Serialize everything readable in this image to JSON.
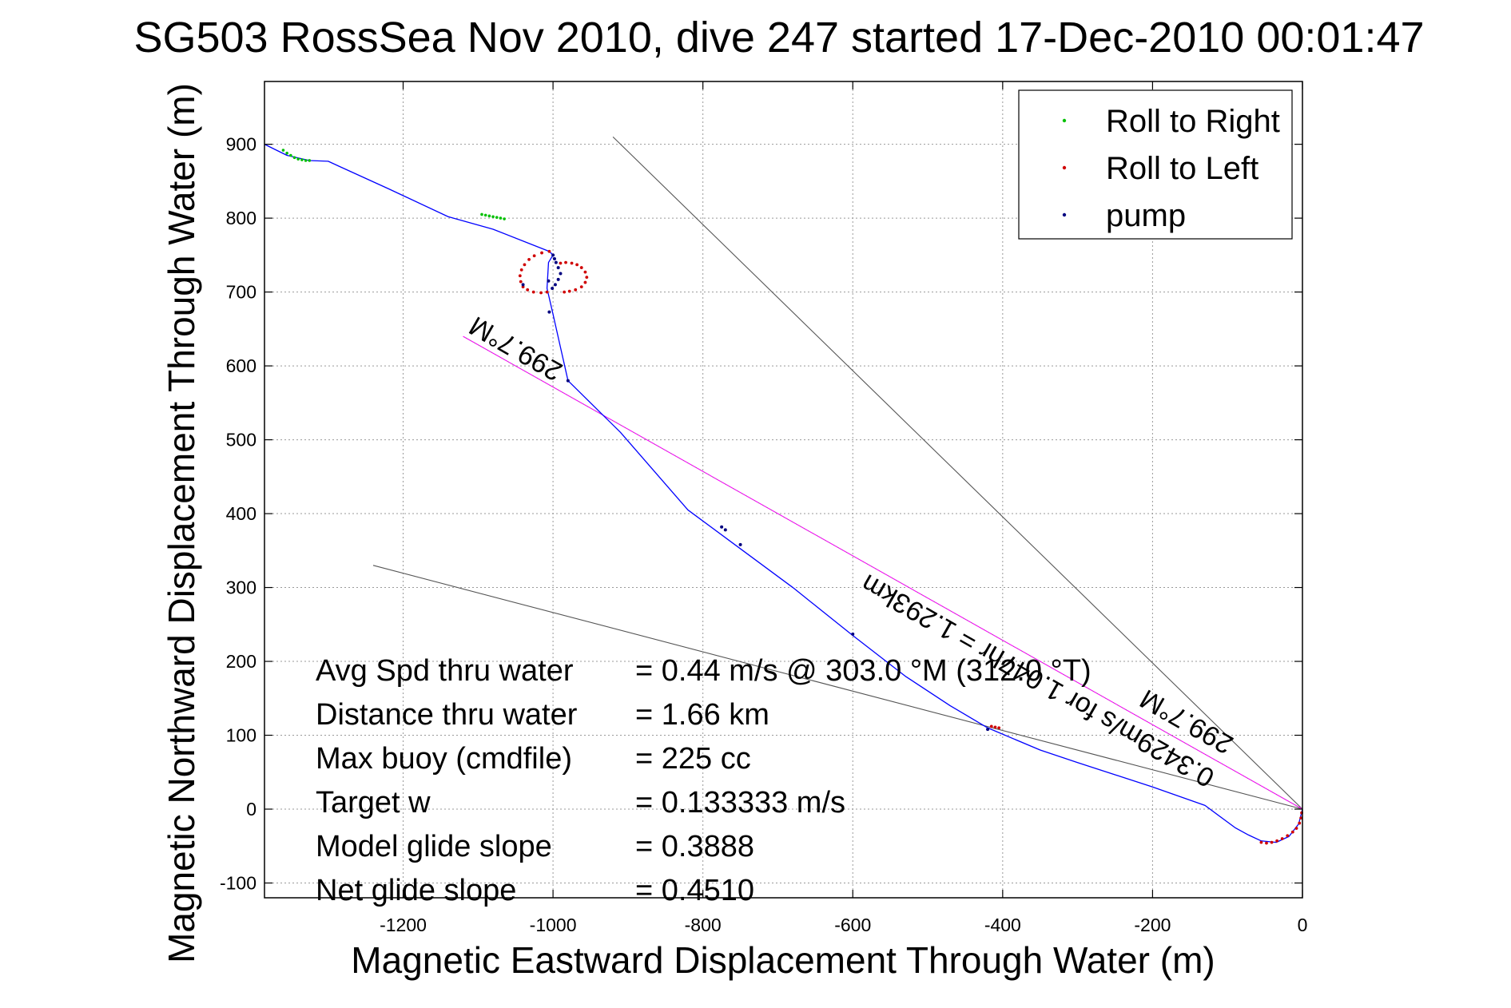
{
  "chart_data": {
    "type": "scatter",
    "title": "SG503 RossSea Nov 2010, dive 247 started 17-Dec-2010 00:01:47",
    "xlabel": "Magnetic Eastward Displacement Through Water (m)",
    "ylabel": "Magnetic Northward Displacement Through Water (m)",
    "xlim": [
      -1385,
      0
    ],
    "ylim": [
      -120,
      985
    ],
    "x_ticks": [
      -1200,
      -1000,
      -800,
      -600,
      -400,
      -200,
      0
    ],
    "x_tick_labels": [
      "-1200",
      "-1000",
      "-800",
      "-600",
      "-400",
      "-200",
      "0"
    ],
    "y_ticks": [
      -100,
      0,
      100,
      200,
      300,
      400,
      500,
      600,
      700,
      800,
      900
    ],
    "y_tick_labels": [
      "-100",
      "0",
      "100",
      "200",
      "300",
      "400",
      "500",
      "600",
      "700",
      "800",
      "900"
    ],
    "grid": true,
    "legend_position": "top-right",
    "legend": [
      {
        "label": "Roll to Right",
        "color": "#00c000"
      },
      {
        "label": "Roll to Left",
        "color": "#d00000"
      },
      {
        "label": "pump",
        "color": "#000080"
      }
    ],
    "track": {
      "color": "#0000ff",
      "x": [
        0,
        -5,
        -18,
        -35,
        -55,
        -72,
        -90,
        -130,
        -200,
        -300,
        -350,
        -420,
        -470,
        -530,
        -600,
        -680,
        -760,
        -820,
        -910,
        -980,
        -990,
        -1000,
        -1008,
        -1006,
        -1000,
        -1005,
        -1030,
        -1080,
        -1140,
        -1220,
        -1285,
        -1300,
        -1325,
        -1355,
        -1385
      ],
      "y": [
        0,
        -20,
        -37,
        -45,
        -43,
        -35,
        -25,
        5,
        30,
        63,
        80,
        110,
        140,
        180,
        235,
        300,
        360,
        405,
        510,
        580,
        625,
        670,
        705,
        740,
        750,
        755,
        765,
        785,
        802,
        840,
        870,
        877,
        878,
        885,
        900
      ]
    },
    "roll_right": {
      "x": [
        -1325,
        -1330,
        -1335,
        -1340,
        -1345,
        -1350,
        -1355,
        -1360,
        -1095,
        -1090,
        -1085,
        -1080,
        -1075,
        -1070,
        -1065
      ],
      "y": [
        878,
        878,
        879,
        880,
        882,
        885,
        888,
        892,
        805,
        804,
        803,
        802,
        801,
        800,
        799
      ]
    },
    "roll_left": {
      "x": [
        -1005,
        -1015,
        -1025,
        -1032,
        -1038,
        -1042,
        -1044,
        -1043,
        -1040,
        -1034,
        -1026,
        -1016,
        -1008,
        -985,
        -978,
        -970,
        -962,
        -957,
        -955,
        -957,
        -962,
        -968,
        -975,
        -983,
        -990,
        -415,
        -410,
        -405,
        -55,
        -48,
        -41,
        -34,
        -27,
        -20,
        -13,
        -8,
        -4,
        -2,
        -1
      ],
      "y": [
        755,
        753,
        749,
        744,
        737,
        730,
        722,
        714,
        707,
        703,
        700,
        699,
        700,
        700,
        701,
        703,
        707,
        713,
        720,
        727,
        733,
        737,
        739,
        740,
        739,
        112,
        111,
        110,
        -45,
        -46,
        -45,
        -43,
        -40,
        -36,
        -31,
        -26,
        -19,
        -12,
        -5
      ]
    },
    "pump": {
      "x": [
        -1000,
        -998,
        -996,
        -993,
        -990,
        -993,
        -997,
        -1001,
        -1006,
        -1040,
        -1005,
        -980,
        -775,
        -770,
        -750,
        -600,
        -420
      ],
      "y": [
        750,
        745,
        740,
        733,
        725,
        717,
        710,
        705,
        715,
        710,
        673,
        580,
        382,
        378,
        358,
        237,
        108
      ]
    },
    "lines": [
      {
        "color": "#555555",
        "x": [
          0,
          -920
        ],
        "y": [
          0,
          910
        ]
      },
      {
        "color": "#555555",
        "x": [
          0,
          -1240
        ],
        "y": [
          0,
          330
        ]
      },
      {
        "color": "#ff00ff",
        "x": [
          0,
          -1120
        ],
        "y": [
          0,
          640
        ]
      },
      {
        "color": "#808080",
        "x": [
          0,
          -1120
        ],
        "y": [
          0,
          640
        ]
      }
    ],
    "annotations": [
      {
        "text": "299.7°M",
        "x": -985,
        "y": 600,
        "angle": 29.7
      },
      {
        "text": "0.3429m/s for 1.047hr = 1.293km",
        "x": -115,
        "y": 50,
        "angle": 29.7
      },
      {
        "text": "299.7°M",
        "x": -90,
        "y": 95,
        "angle": 29.7
      }
    ],
    "stats": [
      {
        "label": "Avg Spd thru water",
        "value": "=  0.44 m/s @ 303.0 °M (312.0 °T)"
      },
      {
        "label": "Distance thru water",
        "value": "=  1.66 km"
      },
      {
        "label": "Max buoy (cmdfile)",
        "value": "= 225 cc"
      },
      {
        "label": "Target w",
        "value": "= 0.133333 m/s"
      },
      {
        "label": "Model glide slope",
        "value": "= 0.3888"
      },
      {
        "label": "Net glide slope",
        "value": "= 0.4510"
      }
    ]
  }
}
